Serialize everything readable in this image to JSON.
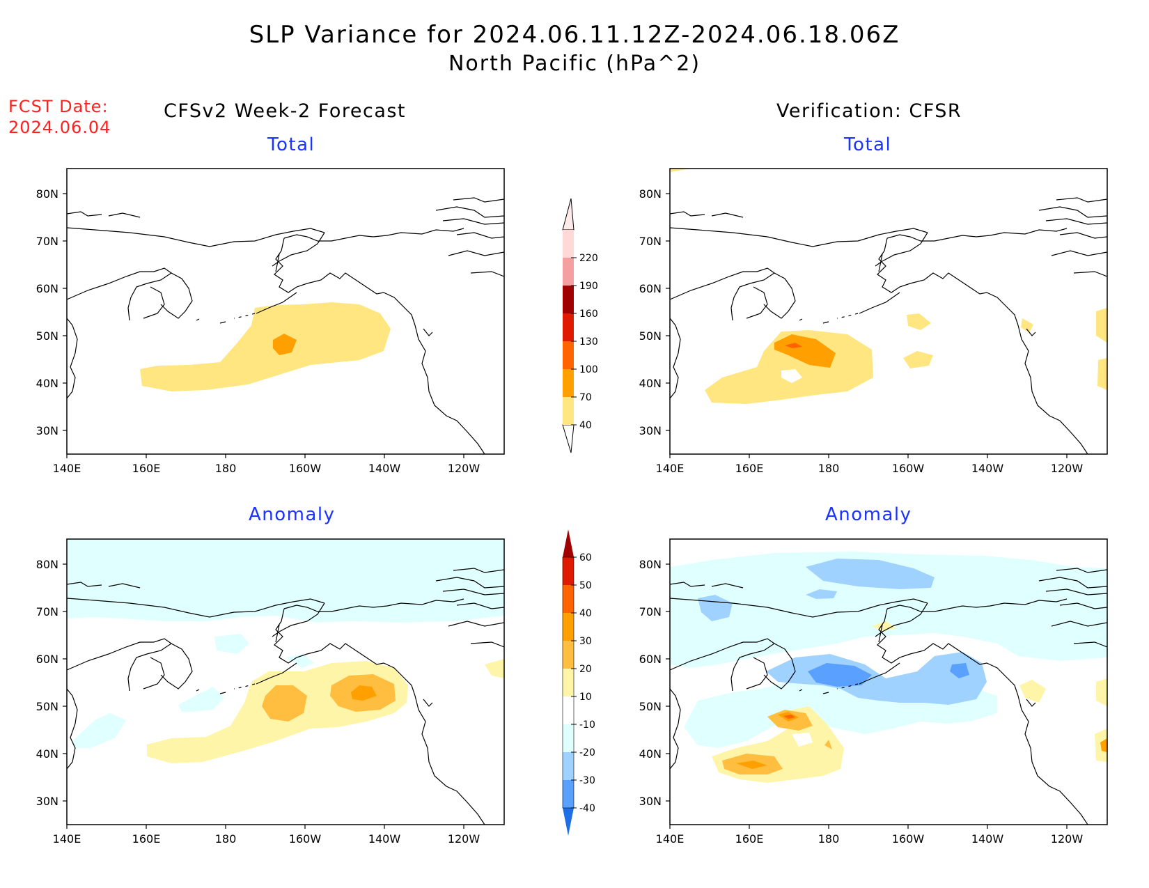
{
  "header": {
    "title": "SLP Variance for 2024.06.11.12Z-2024.06.18.06Z",
    "subtitle": "North Pacific (hPa^2)",
    "fcst_label": "FCST Date:",
    "fcst_date": "2024.06.04"
  },
  "columns": {
    "left": "CFSv2 Week-2 Forecast",
    "right": "Verification: CFSR"
  },
  "panels": {
    "total_label": "Total",
    "anomaly_label": "Anomaly"
  },
  "axes": {
    "lat_ticks": [
      "80N",
      "70N",
      "60N",
      "50N",
      "40N",
      "30N"
    ],
    "lon_ticks": [
      "140E",
      "160E",
      "180",
      "160W",
      "140W",
      "120W"
    ]
  },
  "colorbars": {
    "total": {
      "levels": [
        "40",
        "70",
        "100",
        "130",
        "160",
        "190",
        "220"
      ],
      "colors": [
        "#ffe680",
        "#ffa000",
        "#ff6400",
        "#e01a00",
        "#a00000",
        "#f4a0a0",
        "#ffd8d8"
      ]
    },
    "anomaly": {
      "levels": [
        "60",
        "50",
        "40",
        "30",
        "20",
        "10",
        "-10",
        "-20",
        "-30",
        "-40"
      ],
      "colors": [
        "#a00000",
        "#e01a00",
        "#ff6400",
        "#ffa000",
        "#ffbe40",
        "#fff5a8",
        "#ffffff",
        "#e0ffff",
        "#a0d2ff",
        "#5aa0ff",
        "#1e6ee6"
      ]
    }
  }
}
